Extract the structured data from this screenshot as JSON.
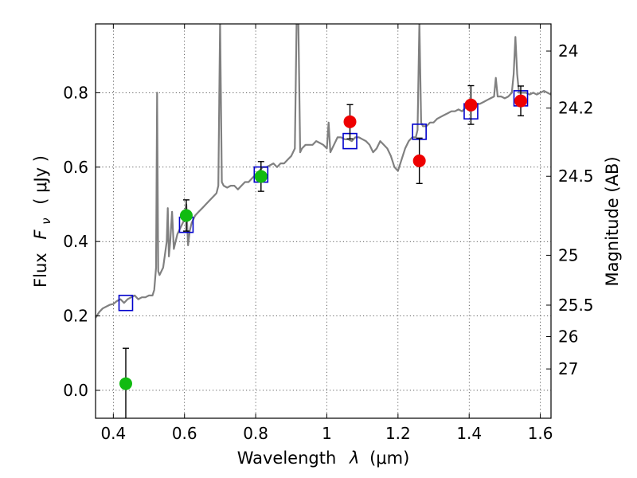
{
  "chart_data": {
    "type": "scatter",
    "xlabel_prefix": "Wavelength",
    "xlabel_symbol": "λ",
    "xlabel_unit": "(μm)",
    "ylabel_prefix": "Flux",
    "ylabel_symbol": "F",
    "ylabel_subscript": "ν",
    "ylabel_unit": "( μJy )",
    "y2label": "Magnitude (AB)",
    "xlim": [
      0.35,
      1.63
    ],
    "ylim": [
      -0.075,
      0.985
    ],
    "grid": true,
    "x_ticks": [
      {
        "value": 0.4,
        "label": "0.4"
      },
      {
        "value": 0.6,
        "label": "0.6"
      },
      {
        "value": 0.8,
        "label": "0.8"
      },
      {
        "value": 1.0,
        "label": "1"
      },
      {
        "value": 1.2,
        "label": "1.2"
      },
      {
        "value": 1.4,
        "label": "1.4"
      },
      {
        "value": 1.6,
        "label": "1.6"
      }
    ],
    "y_ticks": [
      {
        "value": 0.0,
        "label": "0.0"
      },
      {
        "value": 0.2,
        "label": "0.2"
      },
      {
        "value": 0.4,
        "label": "0.4"
      },
      {
        "value": 0.6,
        "label": "0.6"
      },
      {
        "value": 0.8,
        "label": "0.8"
      }
    ],
    "y2_ticks": [
      {
        "value": 24,
        "label": "24"
      },
      {
        "value": 24.2,
        "label": "24.2"
      },
      {
        "value": 24.5,
        "label": "24.5"
      },
      {
        "value": 25,
        "label": "25"
      },
      {
        "value": 25.5,
        "label": "25.5"
      },
      {
        "value": 26,
        "label": "26"
      },
      {
        "value": 27,
        "label": "27"
      }
    ],
    "spectrum": {
      "color": "#808080",
      "points": [
        [
          0.35,
          0.195
        ],
        [
          0.36,
          0.21
        ],
        [
          0.37,
          0.22
        ],
        [
          0.38,
          0.225
        ],
        [
          0.39,
          0.23
        ],
        [
          0.4,
          0.232
        ],
        [
          0.41,
          0.24
        ],
        [
          0.42,
          0.245
        ],
        [
          0.43,
          0.235
        ],
        [
          0.44,
          0.245
        ],
        [
          0.45,
          0.25
        ],
        [
          0.46,
          0.255
        ],
        [
          0.47,
          0.245
        ],
        [
          0.48,
          0.25
        ],
        [
          0.49,
          0.25
        ],
        [
          0.5,
          0.255
        ],
        [
          0.51,
          0.255
        ],
        [
          0.515,
          0.27
        ],
        [
          0.52,
          0.33
        ],
        [
          0.523,
          0.8
        ],
        [
          0.526,
          0.32
        ],
        [
          0.53,
          0.31
        ],
        [
          0.54,
          0.33
        ],
        [
          0.55,
          0.4
        ],
        [
          0.553,
          0.49
        ],
        [
          0.556,
          0.36
        ],
        [
          0.56,
          0.4
        ],
        [
          0.565,
          0.48
        ],
        [
          0.57,
          0.38
        ],
        [
          0.58,
          0.42
        ],
        [
          0.59,
          0.44
        ],
        [
          0.6,
          0.46
        ],
        [
          0.605,
          0.5
        ],
        [
          0.61,
          0.39
        ],
        [
          0.615,
          0.43
        ],
        [
          0.62,
          0.45
        ],
        [
          0.63,
          0.47
        ],
        [
          0.64,
          0.48
        ],
        [
          0.65,
          0.49
        ],
        [
          0.66,
          0.5
        ],
        [
          0.67,
          0.51
        ],
        [
          0.68,
          0.52
        ],
        [
          0.69,
          0.53
        ],
        [
          0.695,
          0.55
        ],
        [
          0.7,
          0.99
        ],
        [
          0.705,
          0.56
        ],
        [
          0.71,
          0.55
        ],
        [
          0.72,
          0.545
        ],
        [
          0.73,
          0.55
        ],
        [
          0.74,
          0.55
        ],
        [
          0.75,
          0.54
        ],
        [
          0.76,
          0.55
        ],
        [
          0.77,
          0.56
        ],
        [
          0.78,
          0.56
        ],
        [
          0.79,
          0.57
        ],
        [
          0.8,
          0.58
        ],
        [
          0.81,
          0.59
        ],
        [
          0.82,
          0.6
        ],
        [
          0.83,
          0.6
        ],
        [
          0.84,
          0.605
        ],
        [
          0.85,
          0.61
        ],
        [
          0.86,
          0.6
        ],
        [
          0.87,
          0.61
        ],
        [
          0.88,
          0.61
        ],
        [
          0.89,
          0.62
        ],
        [
          0.9,
          0.63
        ],
        [
          0.91,
          0.65
        ],
        [
          0.915,
          0.99
        ],
        [
          0.92,
          0.99
        ],
        [
          0.925,
          0.64
        ],
        [
          0.93,
          0.65
        ],
        [
          0.94,
          0.66
        ],
        [
          0.95,
          0.66
        ],
        [
          0.96,
          0.66
        ],
        [
          0.97,
          0.67
        ],
        [
          0.98,
          0.665
        ],
        [
          0.99,
          0.66
        ],
        [
          1.0,
          0.65
        ],
        [
          1.005,
          0.72
        ],
        [
          1.01,
          0.64
        ],
        [
          1.02,
          0.66
        ],
        [
          1.03,
          0.68
        ],
        [
          1.04,
          0.68
        ],
        [
          1.05,
          0.675
        ],
        [
          1.06,
          0.675
        ],
        [
          1.07,
          0.67
        ],
        [
          1.08,
          0.68
        ],
        [
          1.09,
          0.68
        ],
        [
          1.1,
          0.675
        ],
        [
          1.11,
          0.67
        ],
        [
          1.12,
          0.66
        ],
        [
          1.13,
          0.64
        ],
        [
          1.14,
          0.65
        ],
        [
          1.15,
          0.67
        ],
        [
          1.16,
          0.66
        ],
        [
          1.17,
          0.65
        ],
        [
          1.18,
          0.63
        ],
        [
          1.19,
          0.6
        ],
        [
          1.2,
          0.59
        ],
        [
          1.21,
          0.62
        ],
        [
          1.22,
          0.65
        ],
        [
          1.23,
          0.67
        ],
        [
          1.24,
          0.68
        ],
        [
          1.25,
          0.68
        ],
        [
          1.255,
          0.7
        ],
        [
          1.26,
          0.99
        ],
        [
          1.265,
          0.72
        ],
        [
          1.27,
          0.71
        ],
        [
          1.28,
          0.71
        ],
        [
          1.29,
          0.72
        ],
        [
          1.3,
          0.72
        ],
        [
          1.31,
          0.73
        ],
        [
          1.32,
          0.735
        ],
        [
          1.33,
          0.74
        ],
        [
          1.34,
          0.745
        ],
        [
          1.35,
          0.75
        ],
        [
          1.36,
          0.75
        ],
        [
          1.37,
          0.755
        ],
        [
          1.38,
          0.75
        ],
        [
          1.39,
          0.76
        ],
        [
          1.4,
          0.765
        ],
        [
          1.41,
          0.77
        ],
        [
          1.42,
          0.77
        ],
        [
          1.43,
          0.77
        ],
        [
          1.44,
          0.775
        ],
        [
          1.45,
          0.78
        ],
        [
          1.46,
          0.785
        ],
        [
          1.47,
          0.79
        ],
        [
          1.475,
          0.84
        ],
        [
          1.48,
          0.79
        ],
        [
          1.49,
          0.79
        ],
        [
          1.5,
          0.785
        ],
        [
          1.51,
          0.79
        ],
        [
          1.52,
          0.8
        ],
        [
          1.525,
          0.85
        ],
        [
          1.53,
          0.95
        ],
        [
          1.535,
          0.85
        ],
        [
          1.54,
          0.8
        ],
        [
          1.55,
          0.8
        ],
        [
          1.56,
          0.8
        ],
        [
          1.57,
          0.795
        ],
        [
          1.58,
          0.8
        ],
        [
          1.59,
          0.795
        ],
        [
          1.6,
          0.8
        ],
        [
          1.61,
          0.805
        ],
        [
          1.62,
          0.8
        ],
        [
          1.63,
          0.795
        ]
      ]
    },
    "model_points": {
      "color": "#0000cc",
      "points": [
        [
          0.435,
          0.235
        ],
        [
          0.605,
          0.445
        ],
        [
          0.815,
          0.58
        ],
        [
          1.065,
          0.67
        ],
        [
          1.26,
          0.695
        ],
        [
          1.405,
          0.75
        ],
        [
          1.545,
          0.785
        ]
      ]
    },
    "observed_green": {
      "color": "#11bb11",
      "points": [
        {
          "x": 0.435,
          "y": 0.018,
          "err": 0.095
        },
        {
          "x": 0.605,
          "y": 0.47,
          "err": 0.042
        },
        {
          "x": 0.815,
          "y": 0.575,
          "err": 0.04
        }
      ]
    },
    "observed_red": {
      "color": "#ee0000",
      "points": [
        {
          "x": 1.065,
          "y": 0.722,
          "err": 0.046
        },
        {
          "x": 1.26,
          "y": 0.617,
          "err": 0.061
        },
        {
          "x": 1.405,
          "y": 0.767,
          "err": 0.052
        },
        {
          "x": 1.545,
          "y": 0.778,
          "err": 0.04
        }
      ]
    }
  }
}
